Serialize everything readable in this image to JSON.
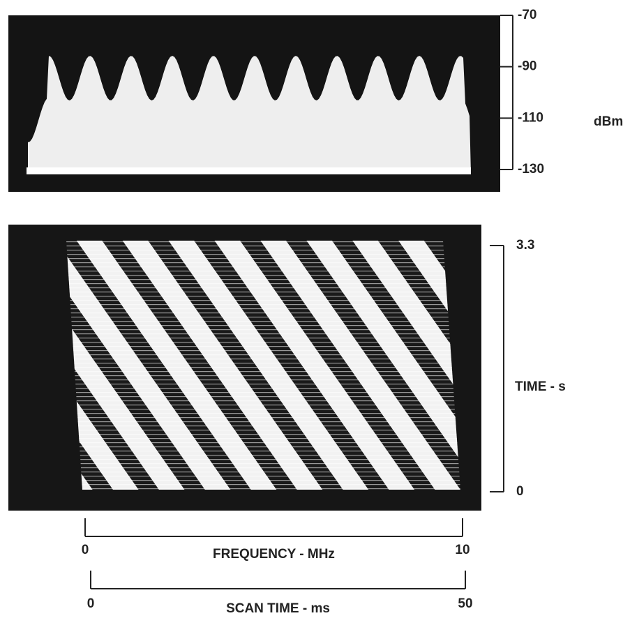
{
  "chart_data": [
    {
      "type": "spectrum",
      "y_label": "dBm",
      "ylim": [
        -130,
        -70
      ],
      "yticks": [
        -70,
        -90,
        -110,
        -130
      ]
    },
    {
      "type": "waterfall",
      "y_label": "TIME - s",
      "ylim": [
        0,
        3.3
      ],
      "yticks": [
        3.3,
        0
      ],
      "x_label": "FREQUENCY - MHz",
      "xlim": [
        0,
        10
      ],
      "xticks": [
        0,
        10
      ],
      "x2_label": "SCAN TIME - ms",
      "x2lim": [
        0,
        50
      ],
      "x2ticks": [
        0,
        50
      ]
    }
  ]
}
